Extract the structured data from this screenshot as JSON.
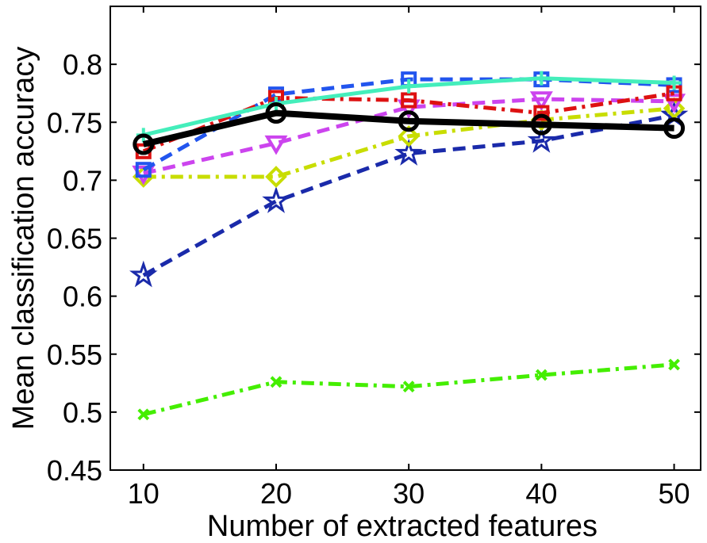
{
  "chart_data": {
    "type": "line",
    "title": "",
    "xlabel": "Number of extracted features",
    "ylabel": "Mean classification accuracy",
    "x": [
      10,
      20,
      30,
      40,
      50
    ],
    "xticks": [
      "10",
      "20",
      "30",
      "40",
      "50"
    ],
    "yticks": [
      "0.45",
      "0.5",
      "0.55",
      "0.6",
      "0.65",
      "0.7",
      "0.75",
      "0.8"
    ],
    "xlim": [
      7.5,
      52
    ],
    "ylim": [
      0.45,
      0.85
    ],
    "grid": false,
    "series": [
      {
        "name": "series-green-x",
        "color": "#44ee00",
        "dash": "dashdot",
        "marker": "x",
        "width": 5,
        "values": [
          0.498,
          0.526,
          0.522,
          0.532,
          0.541
        ]
      },
      {
        "name": "series-navy-star",
        "color": "#1a2aaa",
        "dash": "dashed",
        "marker": "star",
        "width": 5,
        "values": [
          0.618,
          0.682,
          0.723,
          0.734,
          0.756
        ]
      },
      {
        "name": "series-yellow-diamond",
        "color": "#c8dd00",
        "dash": "dashdot",
        "marker": "diamond",
        "width": 5,
        "values": [
          0.703,
          0.703,
          0.738,
          0.752,
          0.762
        ]
      },
      {
        "name": "series-magenta-triangle",
        "color": "#cc44ee",
        "dash": "dashed",
        "marker": "triangle",
        "width": 5,
        "values": [
          0.706,
          0.732,
          0.763,
          0.77,
          0.768
        ]
      },
      {
        "name": "series-blue-square",
        "color": "#2255ee",
        "dash": "dashed",
        "marker": "square",
        "width": 5,
        "values": [
          0.709,
          0.774,
          0.787,
          0.787,
          0.782
        ]
      },
      {
        "name": "series-red-square",
        "color": "#dd1111",
        "dash": "dashdot",
        "marker": "square",
        "width": 5,
        "values": [
          0.725,
          0.771,
          0.769,
          0.758,
          0.775
        ]
      },
      {
        "name": "series-teal-plus",
        "color": "#44eebb",
        "dash": "solid",
        "marker": "plus",
        "width": 5,
        "values": [
          0.739,
          0.766,
          0.781,
          0.788,
          0.784
        ]
      },
      {
        "name": "series-black-circle",
        "color": "#000000",
        "dash": "solid",
        "marker": "circle",
        "width": 8,
        "values": [
          0.731,
          0.758,
          0.751,
          0.748,
          0.745
        ]
      }
    ]
  }
}
